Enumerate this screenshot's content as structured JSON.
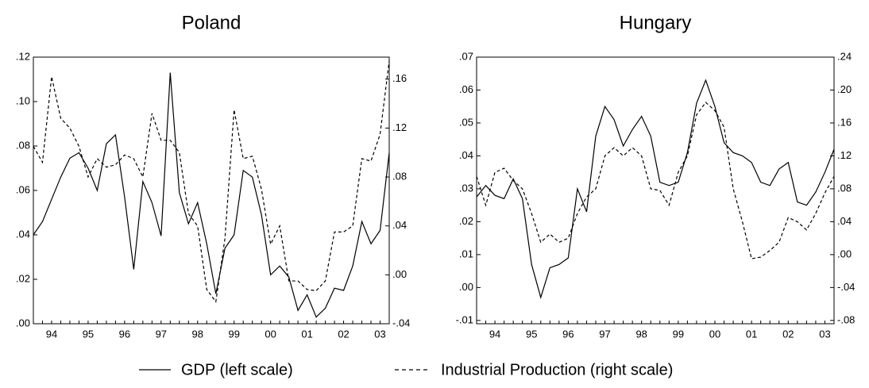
{
  "chart_data": [
    {
      "type": "line",
      "title": "Poland",
      "x": [
        1994,
        1994.25,
        1994.5,
        1994.75,
        1995,
        1995.25,
        1995.5,
        1995.75,
        1996,
        1996.25,
        1996.5,
        1996.75,
        1997,
        1997.25,
        1997.5,
        1997.75,
        1998,
        1998.25,
        1998.5,
        1998.75,
        1999,
        1999.25,
        1999.5,
        1999.75,
        2000,
        2000.25,
        2000.5,
        2000.75,
        2001,
        2001.25,
        2001.5,
        2001.75,
        2002,
        2002.25,
        2002.5,
        2002.75,
        2003,
        2003.25,
        2003.5,
        2003.75
      ],
      "xlim": [
        1994,
        2003.75
      ],
      "xticks": [
        {
          "value": 1994.5,
          "label": "94"
        },
        {
          "value": 1995.5,
          "label": "95"
        },
        {
          "value": 1996.5,
          "label": "96"
        },
        {
          "value": 1997.5,
          "label": "97"
        },
        {
          "value": 1998.5,
          "label": "98"
        },
        {
          "value": 1999.5,
          "label": "99"
        },
        {
          "value": 2000.5,
          "label": "00"
        },
        {
          "value": 2001.5,
          "label": "01"
        },
        {
          "value": 2002.5,
          "label": "02"
        },
        {
          "value": 2003.5,
          "label": "03"
        }
      ],
      "ylim": [
        0,
        0.12
      ],
      "yticks": [
        {
          "value": 0,
          "label": ".00"
        },
        {
          "value": 0.02,
          "label": ".02"
        },
        {
          "value": 0.04,
          "label": ".04"
        },
        {
          "value": 0.06,
          "label": ".06"
        },
        {
          "value": 0.08,
          "label": ".08"
        },
        {
          "value": 0.1,
          "label": ".10"
        },
        {
          "value": 0.12,
          "label": ".12"
        }
      ],
      "y2lim": [
        -0.04,
        0.178
      ],
      "y2ticks": [
        {
          "value": -0.04,
          "label": "-.04"
        },
        {
          "value": 0,
          "label": ".00"
        },
        {
          "value": 0.04,
          "label": ".04"
        },
        {
          "value": 0.08,
          "label": ".08"
        },
        {
          "value": 0.12,
          "label": ".12"
        },
        {
          "value": 0.16,
          "label": ".16"
        }
      ],
      "series": [
        {
          "name": "GDP (left scale)",
          "color": "#000000",
          "dash": "solid",
          "values": [
            0.04,
            0.046,
            0.056,
            0.066,
            0.0745,
            0.077,
            0.07,
            0.06,
            0.081,
            0.085,
            0.057,
            0.0245,
            0.064,
            0.0545,
            0.0395,
            0.113,
            0.059,
            0.045,
            0.0545,
            0.036,
            0.0135,
            0.034,
            0.04,
            0.069,
            0.066,
            0.049,
            0.022,
            0.026,
            0.021,
            0.006,
            0.013,
            0.003,
            0.007,
            0.016,
            0.015,
            0.026,
            0.046,
            0.036,
            0.042,
            0.077
          ]
        },
        {
          "name": "Industrial Production (right scale)",
          "color": "#000000",
          "dash": "dashed",
          "axis": "y2",
          "values": [
            0.105,
            0.092,
            0.162,
            0.128,
            0.12,
            0.105,
            0.08,
            0.095,
            0.088,
            0.09,
            0.098,
            0.095,
            0.08,
            0.132,
            0.11,
            0.11,
            0.1,
            0.05,
            0.04,
            -0.012,
            -0.022,
            0.03,
            0.135,
            0.095,
            0.097,
            0.07,
            0.025,
            0.04,
            -0.005,
            -0.005,
            -0.012,
            -0.013,
            -0.005,
            0.035,
            0.035,
            0.04,
            0.095,
            0.093,
            0.115,
            0.175
          ]
        }
      ]
    },
    {
      "type": "line",
      "title": "Hungary",
      "x": [
        1994,
        1994.25,
        1994.5,
        1994.75,
        1995,
        1995.25,
        1995.5,
        1995.75,
        1996,
        1996.25,
        1996.5,
        1996.75,
        1997,
        1997.25,
        1997.5,
        1997.75,
        1998,
        1998.25,
        1998.5,
        1998.75,
        1999,
        1999.25,
        1999.5,
        1999.75,
        2000,
        2000.25,
        2000.5,
        2000.75,
        2001,
        2001.25,
        2001.5,
        2001.75,
        2002,
        2002.25,
        2002.5,
        2002.75,
        2003,
        2003.25,
        2003.5,
        2003.75
      ],
      "xlim": [
        1994,
        2003.75
      ],
      "xticks": [
        {
          "value": 1994.5,
          "label": "94"
        },
        {
          "value": 1995.5,
          "label": "95"
        },
        {
          "value": 1996.5,
          "label": "96"
        },
        {
          "value": 1997.5,
          "label": "97"
        },
        {
          "value": 1998.5,
          "label": "98"
        },
        {
          "value": 1999.5,
          "label": "99"
        },
        {
          "value": 2000.5,
          "label": "00"
        },
        {
          "value": 2001.5,
          "label": "01"
        },
        {
          "value": 2002.5,
          "label": "02"
        },
        {
          "value": 2003.5,
          "label": "03"
        }
      ],
      "ylim": [
        -0.011,
        0.07
      ],
      "yticks": [
        {
          "value": -0.01,
          "label": "-.01"
        },
        {
          "value": 0,
          "label": ".00"
        },
        {
          "value": 0.01,
          "label": ".01"
        },
        {
          "value": 0.02,
          "label": ".02"
        },
        {
          "value": 0.03,
          "label": ".03"
        },
        {
          "value": 0.04,
          "label": ".04"
        },
        {
          "value": 0.05,
          "label": ".05"
        },
        {
          "value": 0.06,
          "label": ".06"
        },
        {
          "value": 0.07,
          "label": ".07"
        }
      ],
      "y2lim": [
        -0.084,
        0.24
      ],
      "y2ticks": [
        {
          "value": -0.08,
          "label": "-.08"
        },
        {
          "value": -0.04,
          "label": "-.04"
        },
        {
          "value": 0,
          "label": ".00"
        },
        {
          "value": 0.04,
          "label": ".04"
        },
        {
          "value": 0.08,
          "label": ".08"
        },
        {
          "value": 0.12,
          "label": ".12"
        },
        {
          "value": 0.16,
          "label": ".16"
        },
        {
          "value": 0.2,
          "label": ".20"
        },
        {
          "value": 0.24,
          "label": ".24"
        }
      ],
      "series": [
        {
          "color": "#000000",
          "dash": "solid",
          "values": [
            0.0275,
            0.031,
            0.028,
            0.027,
            0.033,
            0.027,
            0.007,
            -0.003,
            0.006,
            0.007,
            0.009,
            0.03,
            0.023,
            0.046,
            0.055,
            0.051,
            0.043,
            0.048,
            0.052,
            0.046,
            0.032,
            0.031,
            0.032,
            0.041,
            0.056,
            0.063,
            0.055,
            0.044,
            0.041,
            0.04,
            0.038,
            0.032,
            0.031,
            0.036,
            0.038,
            0.026,
            0.025,
            0.029,
            0.035,
            0.042
          ]
        },
        {
          "color": "#000000",
          "dash": "dashed",
          "axis": "y2",
          "values": [
            0.095,
            0.06,
            0.1,
            0.105,
            0.09,
            0.08,
            0.05,
            0.015,
            0.025,
            0.015,
            0.02,
            0.05,
            0.07,
            0.08,
            0.12,
            0.13,
            0.12,
            0.13,
            0.12,
            0.08,
            0.078,
            0.06,
            0.1,
            0.12,
            0.17,
            0.185,
            0.175,
            0.155,
            0.08,
            0.04,
            -0.005,
            -0.003,
            0.005,
            0.015,
            0.045,
            0.04,
            0.03,
            0.05,
            0.075,
            0.095
          ]
        }
      ]
    }
  ]
}
